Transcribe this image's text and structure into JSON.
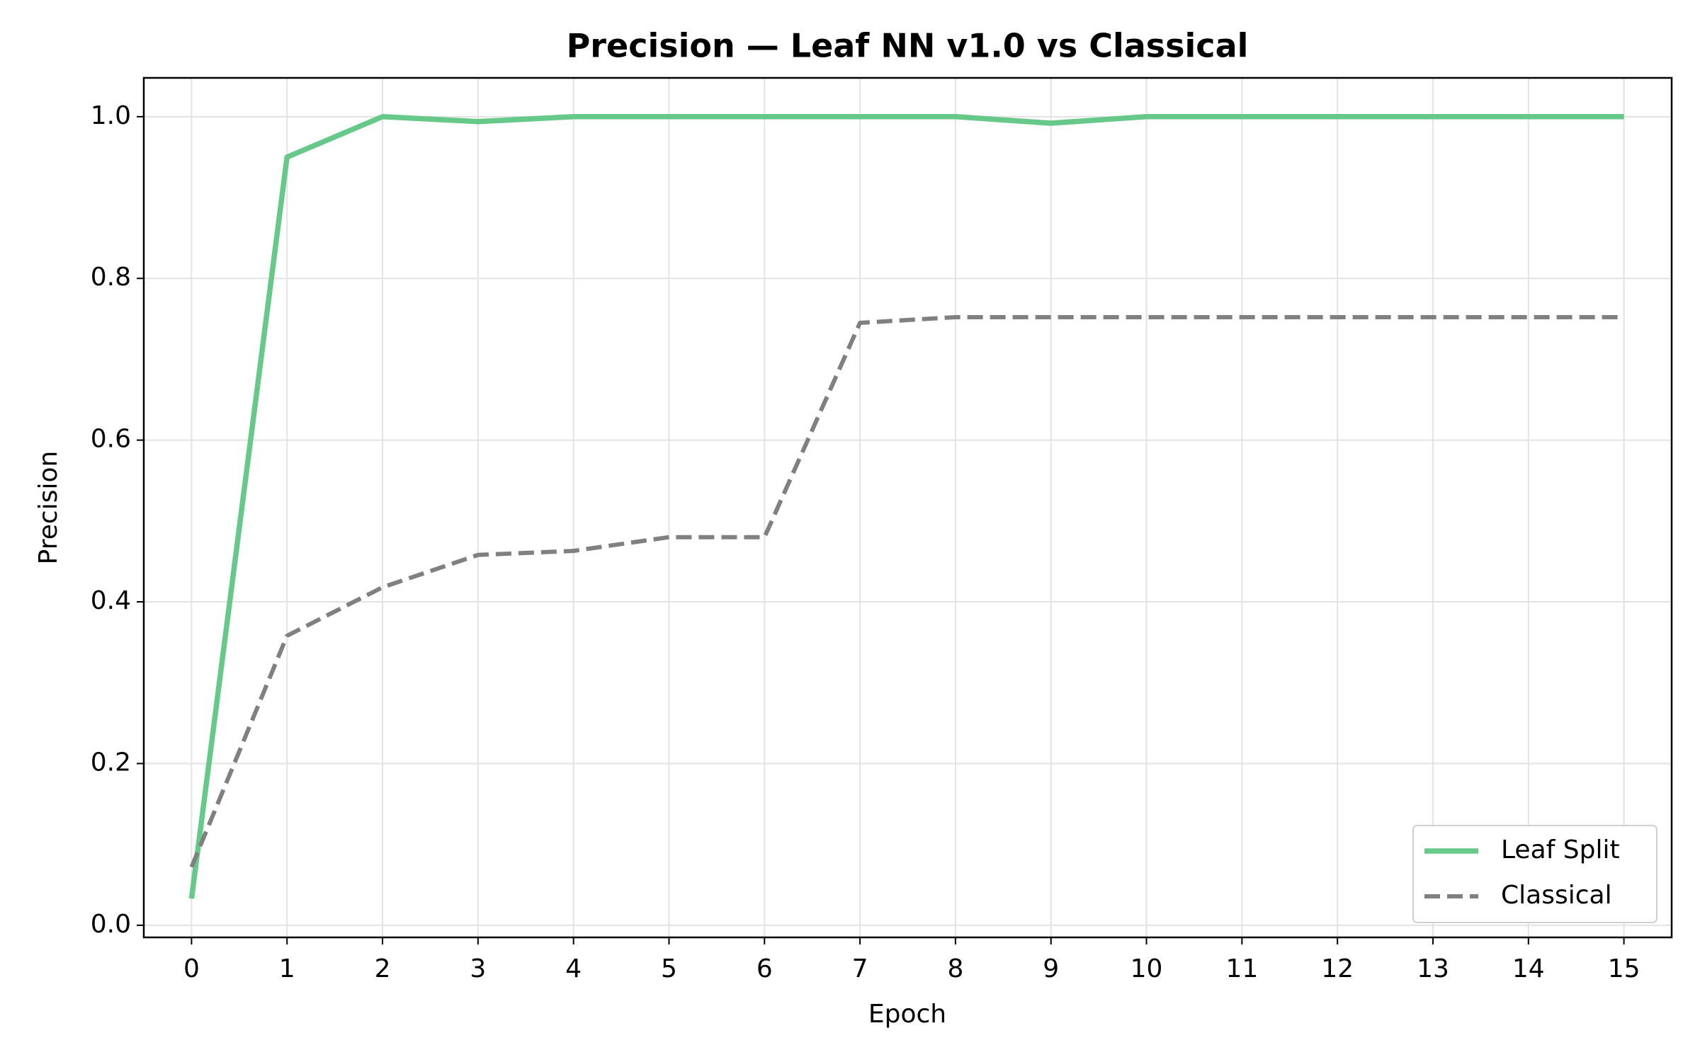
{
  "chart_data": {
    "type": "line",
    "title": "Precision — Leaf NN v1.0 vs Classical",
    "x_label": "Epoch",
    "y_label": "Precision",
    "x": [
      0,
      1,
      2,
      3,
      4,
      5,
      6,
      7,
      8,
      9,
      10,
      11,
      12,
      13,
      14,
      15
    ],
    "series": [
      {
        "name": "Leaf Split",
        "color": "#66c98a",
        "style": "solid",
        "values": [
          0.033,
          0.95,
          1.0,
          0.994,
          1.0,
          1.0,
          1.0,
          1.0,
          1.0,
          0.992,
          1.0,
          1.0,
          1.0,
          1.0,
          1.0,
          1.0
        ]
      },
      {
        "name": "Classical",
        "color": "#808080",
        "style": "dashed",
        "values": [
          0.072,
          0.358,
          0.418,
          0.458,
          0.463,
          0.48,
          0.48,
          0.745,
          0.752,
          0.752,
          0.752,
          0.752,
          0.752,
          0.752,
          0.752,
          0.752
        ]
      }
    ],
    "xlim": [
      -0.5,
      15.5
    ],
    "ylim": [
      -0.015,
      1.048
    ],
    "xticks": [
      0,
      1,
      2,
      3,
      4,
      5,
      6,
      7,
      8,
      9,
      10,
      11,
      12,
      13,
      14,
      15
    ],
    "yticks": [
      {
        "value": 0,
        "label": "0.0"
      },
      0.2,
      0.4,
      0.6,
      0.8,
      {
        "value": 1,
        "label": "1.0"
      }
    ],
    "grid": true,
    "legend": "lower right"
  }
}
